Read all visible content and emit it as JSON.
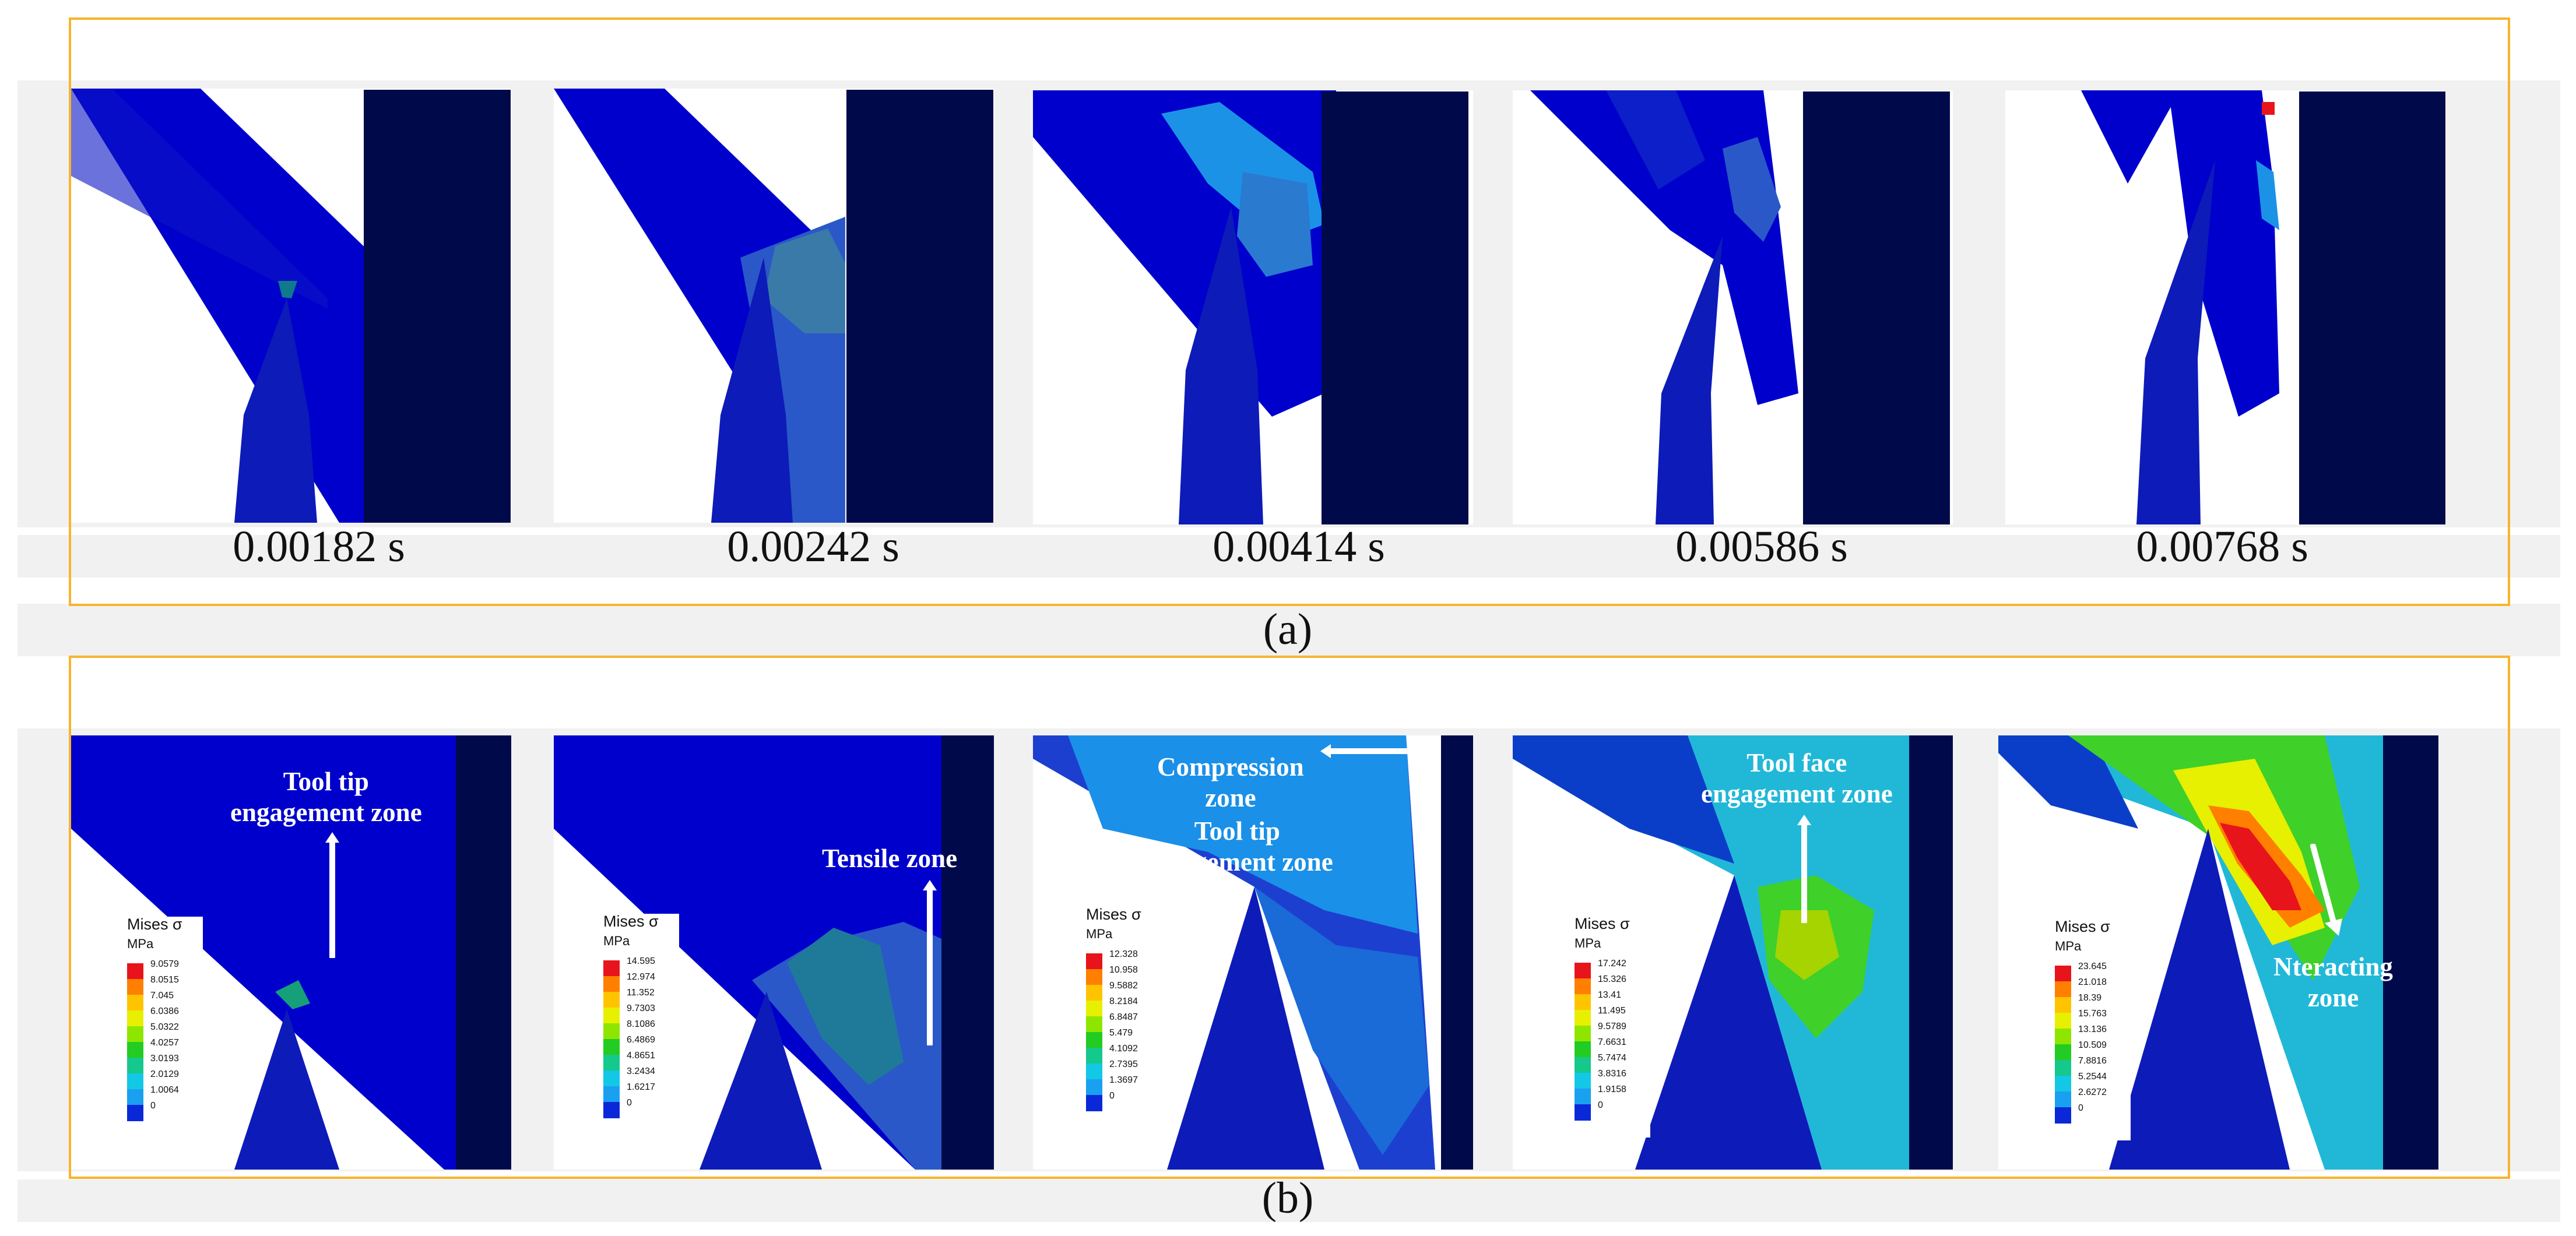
{
  "top_row": {
    "timestamps": [
      "0.00182 s",
      "0.00242 s",
      "0.00414 s",
      "0.00586 s",
      "0.00768 s"
    ],
    "caption": "(a)"
  },
  "bottom_row": {
    "caption": "(b)",
    "annotations": {
      "p1": "Tool tip\nengagement zone",
      "p2": "Tensile zone",
      "p3a": "Compression\nzone",
      "p3b": "Tool tip\nengagement zone",
      "p4": "Tool face\nengagement zone",
      "p5": "Nteracting\nzone"
    },
    "legend_title": "Mises σ",
    "legend_unit": "MPa",
    "legend_colors": [
      "#e8141b",
      "#ff7f00",
      "#ffc400",
      "#e6f000",
      "#8ee600",
      "#22cc22",
      "#15c88c",
      "#12c8e6",
      "#1aa0f0",
      "#0a28d8"
    ],
    "legends": [
      {
        "values": [
          "9.0579",
          "8.0515",
          "7.045",
          "6.0386",
          "5.0322",
          "4.0257",
          "3.0193",
          "2.0129",
          "1.0064",
          "0"
        ]
      },
      {
        "values": [
          "14.595",
          "12.974",
          "11.352",
          "9.7303",
          "8.1086",
          "6.4869",
          "4.8651",
          "3.2434",
          "1.6217",
          "0"
        ]
      },
      {
        "values": [
          "12.328",
          "10.958",
          "9.5882",
          "8.2184",
          "6.8487",
          "5.479",
          "4.1092",
          "2.7395",
          "1.3697",
          "0"
        ]
      },
      {
        "values": [
          "17.242",
          "15.326",
          "13.41",
          "11.495",
          "9.5789",
          "7.6631",
          "5.7474",
          "3.8316",
          "1.9158",
          "0"
        ]
      },
      {
        "values": [
          "23.645",
          "21.018",
          "18.39",
          "15.763",
          "13.136",
          "10.509",
          "7.8816",
          "5.2544",
          "2.6272",
          "0"
        ]
      }
    ]
  },
  "colors": {
    "frame": "#f7b42c",
    "chip": "#0000cd",
    "tool": "#0d1bb8",
    "workpiece": "#000a4a",
    "band": "#f1f1f1"
  }
}
